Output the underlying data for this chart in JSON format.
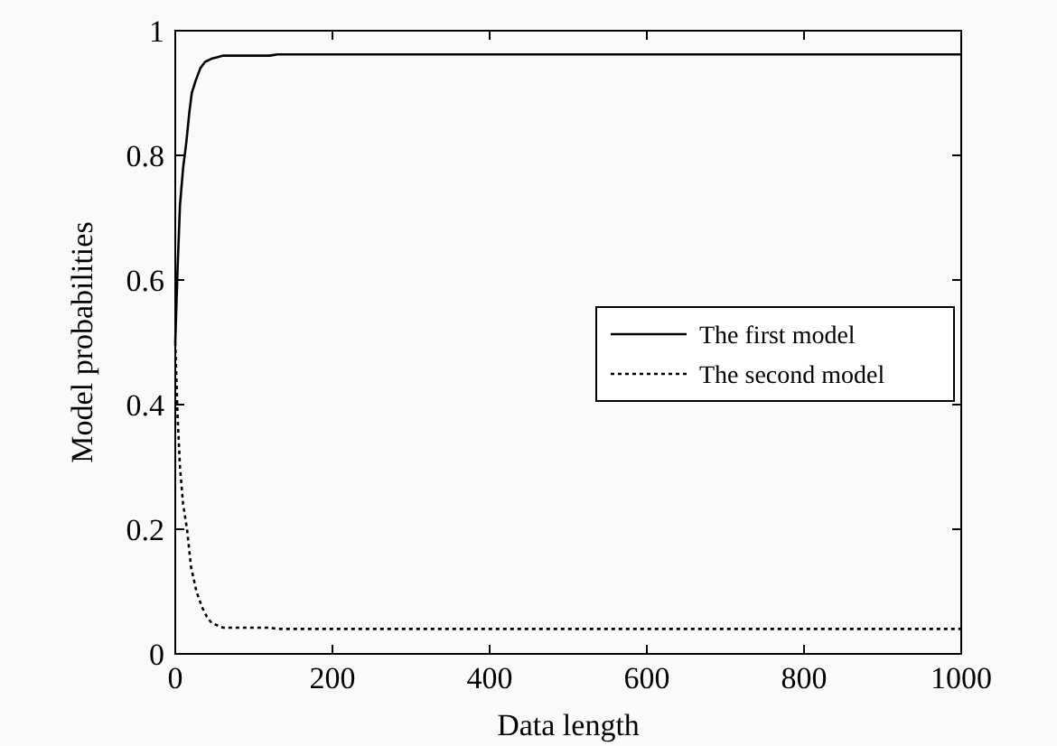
{
  "chart_data": {
    "type": "line",
    "xlabel": "Data length",
    "ylabel": "Model probabilities",
    "xlim": [
      0,
      1000
    ],
    "ylim": [
      0,
      1
    ],
    "xticks": [
      0,
      200,
      400,
      600,
      800,
      1000
    ],
    "yticks": [
      0,
      0.2,
      0.4,
      0.6,
      0.8,
      1
    ],
    "grid": false,
    "legend": "right",
    "series": [
      {
        "name": "The first model",
        "color": "#000000",
        "line_style": "solid",
        "x": [
          0,
          3,
          6,
          10,
          14,
          18,
          21,
          26,
          32,
          38,
          46,
          55,
          61,
          80,
          120,
          130,
          200,
          400,
          600,
          800,
          1000
        ],
        "values": [
          0.5,
          0.62,
          0.72,
          0.78,
          0.82,
          0.87,
          0.9,
          0.92,
          0.94,
          0.95,
          0.955,
          0.958,
          0.96,
          0.96,
          0.96,
          0.962,
          0.962,
          0.962,
          0.962,
          0.962,
          0.962
        ]
      },
      {
        "name": "The second model",
        "color": "#000000",
        "line_style": "dotted",
        "x": [
          0,
          3,
          6,
          10,
          15,
          20,
          27,
          34,
          40,
          46,
          55,
          61,
          80,
          120,
          130,
          200,
          400,
          600,
          800,
          1000
        ],
        "values": [
          0.5,
          0.38,
          0.3,
          0.24,
          0.2,
          0.14,
          0.1,
          0.075,
          0.06,
          0.05,
          0.045,
          0.042,
          0.042,
          0.042,
          0.04,
          0.04,
          0.04,
          0.04,
          0.04,
          0.04
        ]
      }
    ]
  }
}
